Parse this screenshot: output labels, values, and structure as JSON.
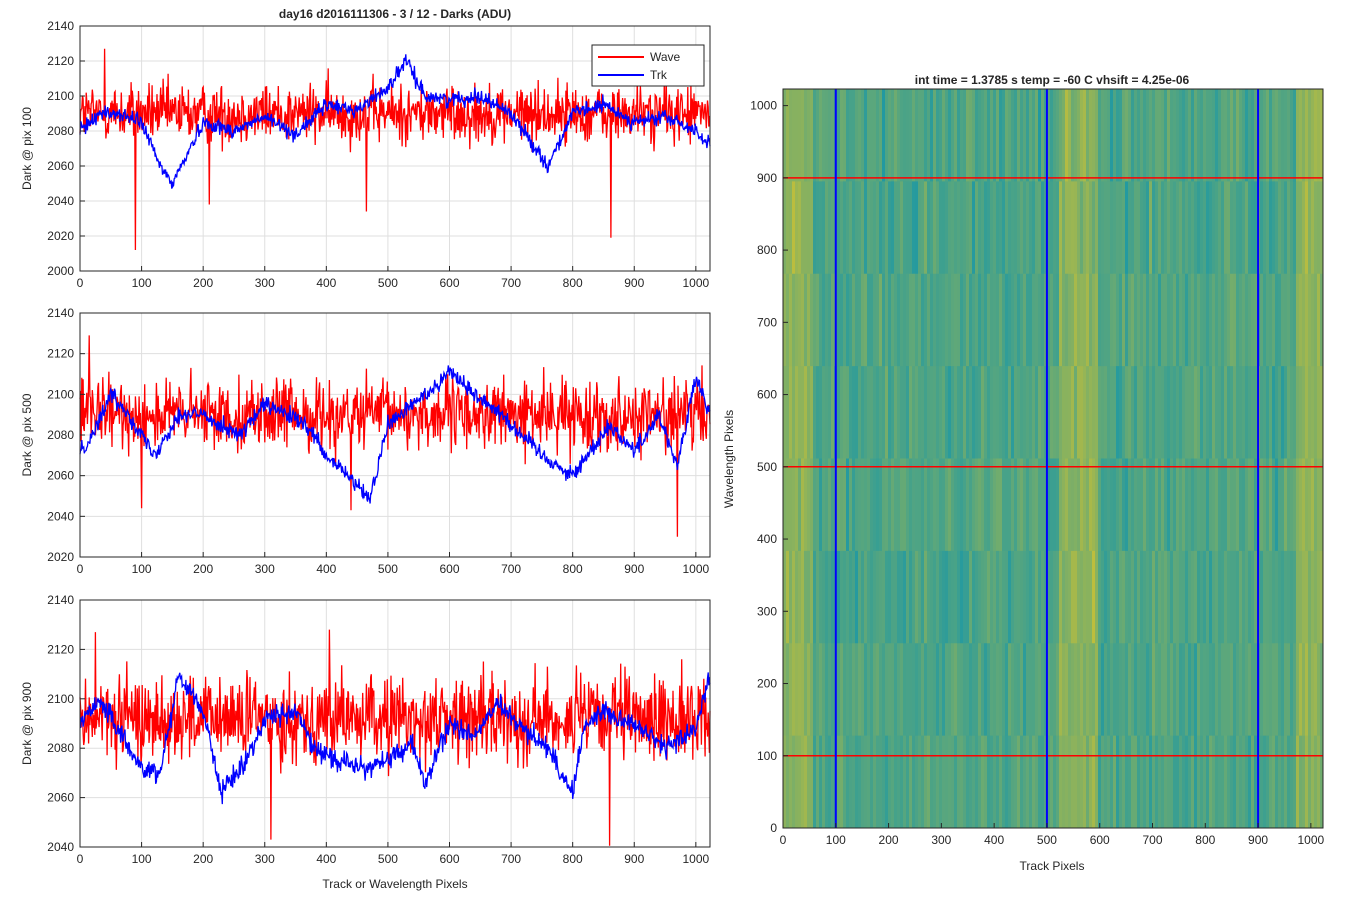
{
  "figure": {
    "left_panels_title": "day16 d2016111306 - 3 / 12 - Darks (ADU)",
    "left_xlabel": "Track or Wavelength Pixels",
    "right_title": "int time = 1.3785 s   temp = -60 C   vhsift = 4.25e-06",
    "right_xlabel": "Track Pixels",
    "right_ylabel": "Wavelength Pixels"
  },
  "legend": {
    "entries": [
      "Wave",
      "Trk"
    ]
  },
  "colors": {
    "wave": "#ff0000",
    "trk": "#0000ff",
    "axis": "#262626",
    "grid": "#dfdfdf"
  },
  "chart_data": [
    {
      "type": "line",
      "ylabel": "Dark @ pix 100",
      "xlim": [
        0,
        1023
      ],
      "ylim": [
        2000,
        2140
      ],
      "xticks": [
        0,
        100,
        200,
        300,
        400,
        500,
        600,
        700,
        800,
        900,
        1000
      ],
      "yticks": [
        2000,
        2020,
        2040,
        2060,
        2080,
        2100,
        2120,
        2140
      ],
      "grid": true,
      "legend": "top-right",
      "series": [
        {
          "name": "Wave",
          "color": "#ff0000",
          "mean": 2090,
          "noise": 12,
          "spikes": [
            [
              90,
              2012
            ],
            [
              210,
              2038
            ],
            [
              465,
              2034
            ],
            [
              862,
              2019
            ],
            [
              40,
              2127
            ]
          ]
        },
        {
          "name": "Trk",
          "color": "#0000ff",
          "x": [
            0,
            30,
            60,
            100,
            130,
            150,
            200,
            250,
            300,
            350,
            400,
            450,
            500,
            530,
            560,
            600,
            650,
            700,
            760,
            800,
            850,
            900,
            950,
            1000,
            1023
          ],
          "y": [
            2080,
            2090,
            2090,
            2085,
            2060,
            2050,
            2085,
            2080,
            2088,
            2078,
            2095,
            2092,
            2105,
            2120,
            2100,
            2098,
            2100,
            2090,
            2060,
            2090,
            2095,
            2085,
            2088,
            2080,
            2072
          ]
        }
      ]
    },
    {
      "type": "line",
      "ylabel": "Dark @ pix 500",
      "xlim": [
        0,
        1023
      ],
      "ylim": [
        2020,
        2140
      ],
      "xticks": [
        0,
        100,
        200,
        300,
        400,
        500,
        600,
        700,
        800,
        900,
        1000
      ],
      "yticks": [
        2020,
        2040,
        2060,
        2080,
        2100,
        2120,
        2140
      ],
      "grid": true,
      "series": [
        {
          "name": "Wave",
          "color": "#ff0000",
          "mean": 2090,
          "noise": 12,
          "spikes": [
            [
              970,
              2030
            ],
            [
              100,
              2044
            ],
            [
              440,
              2043
            ],
            [
              15,
              2129
            ]
          ]
        },
        {
          "name": "Trk",
          "color": "#0000ff",
          "x": [
            0,
            20,
            50,
            80,
            120,
            160,
            200,
            260,
            300,
            350,
            380,
            400,
            420,
            470,
            500,
            540,
            580,
            600,
            640,
            680,
            700,
            760,
            800,
            860,
            900,
            940,
            970,
            1000,
            1023
          ],
          "y": [
            2072,
            2080,
            2100,
            2090,
            2070,
            2090,
            2090,
            2080,
            2095,
            2088,
            2080,
            2068,
            2065,
            2048,
            2085,
            2095,
            2105,
            2112,
            2100,
            2092,
            2085,
            2068,
            2060,
            2085,
            2072,
            2090,
            2065,
            2108,
            2090
          ]
        }
      ]
    },
    {
      "type": "line",
      "ylabel": "Dark @ pix 900",
      "xlim": [
        0,
        1023
      ],
      "ylim": [
        2040,
        2140
      ],
      "xticks": [
        0,
        100,
        200,
        300,
        400,
        500,
        600,
        700,
        800,
        900,
        1000
      ],
      "yticks": [
        2040,
        2060,
        2080,
        2100,
        2120,
        2140
      ],
      "grid": true,
      "series": [
        {
          "name": "Wave",
          "color": "#ff0000",
          "mean": 2092,
          "noise": 12,
          "spikes": [
            [
              310,
              2043
            ],
            [
              860,
              2040
            ],
            [
              25,
              2127
            ],
            [
              405,
              2128
            ]
          ]
        },
        {
          "name": "Trk",
          "color": "#0000ff",
          "x": [
            0,
            30,
            60,
            100,
            130,
            160,
            200,
            230,
            270,
            300,
            350,
            380,
            420,
            460,
            500,
            540,
            560,
            600,
            640,
            680,
            700,
            760,
            800,
            820,
            850,
            900,
            950,
            1000,
            1023
          ],
          "y": [
            2090,
            2100,
            2088,
            2072,
            2070,
            2110,
            2095,
            2062,
            2075,
            2092,
            2095,
            2080,
            2075,
            2072,
            2075,
            2082,
            2065,
            2090,
            2085,
            2098,
            2092,
            2080,
            2062,
            2090,
            2095,
            2090,
            2080,
            2088,
            2110
          ]
        }
      ]
    },
    {
      "type": "heatmap",
      "xlabel": "Track Pixels",
      "ylabel": "Wavelength Pixels",
      "xlim": [
        0,
        1023
      ],
      "ylim": [
        0,
        1023
      ],
      "xticks": [
        0,
        100,
        200,
        300,
        400,
        500,
        600,
        700,
        800,
        900,
        1000
      ],
      "yticks": [
        0,
        100,
        200,
        300,
        400,
        500,
        600,
        700,
        800,
        900,
        1000
      ],
      "colormap": "parula",
      "vertical_lines": {
        "color": "#0000ff",
        "x": [
          100,
          500,
          900
        ]
      },
      "horizontal_lines": {
        "color": "#ff0000",
        "y": [
          100,
          500,
          900
        ]
      },
      "warm_bands_x": [
        [
          0,
          60
        ],
        [
          560,
          640
        ],
        [
          1040,
          1100
        ]
      ]
    }
  ]
}
